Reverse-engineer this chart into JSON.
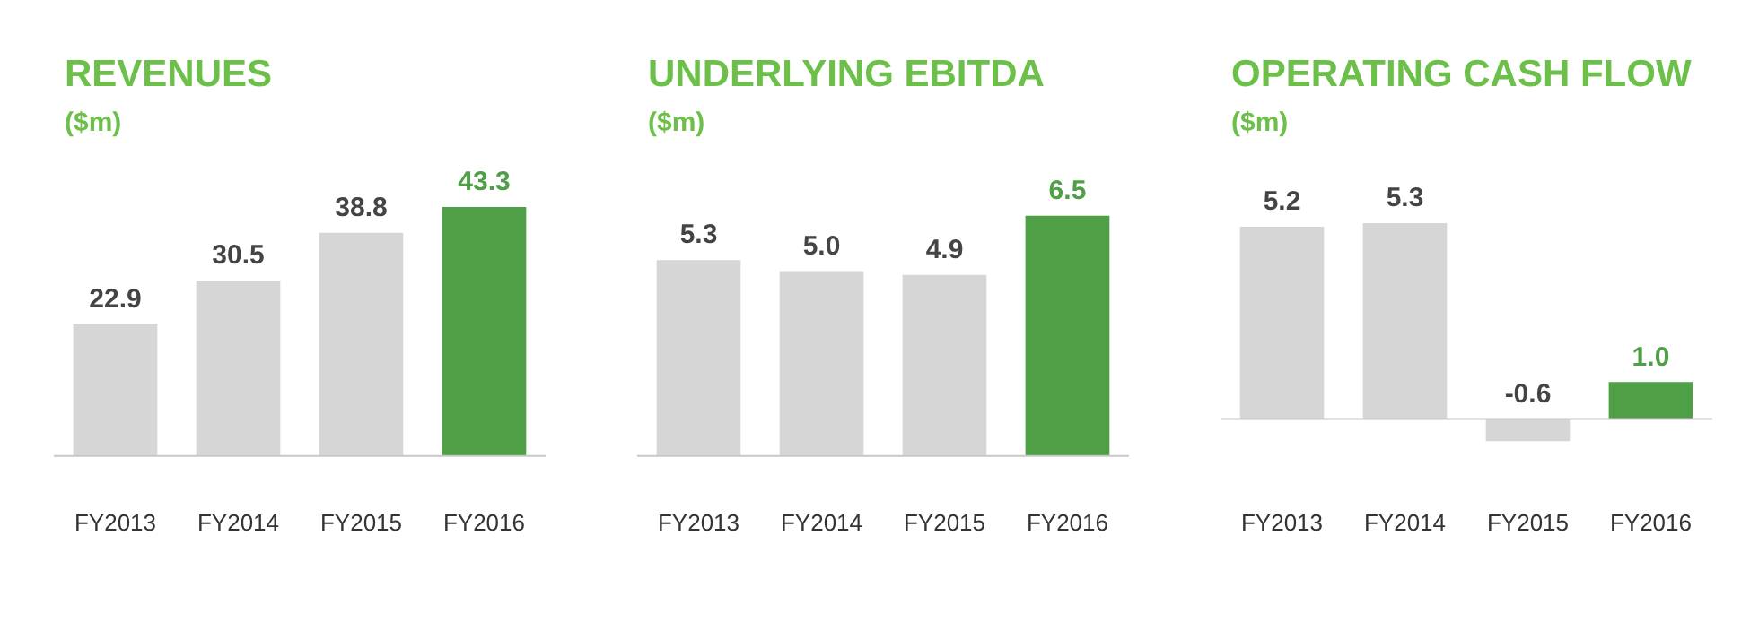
{
  "chart_data": [
    {
      "type": "bar",
      "title": "REVENUES",
      "subtitle": "($m)",
      "categories": [
        "FY2013",
        "FY2014",
        "FY2015",
        "FY2016"
      ],
      "values": [
        22.9,
        30.5,
        38.8,
        43.3
      ],
      "value_labels": [
        "22.9",
        "30.5",
        "38.8",
        "43.3"
      ],
      "colors": [
        "#d6d6d6",
        "#d6d6d6",
        "#d6d6d6",
        "#4e9f46"
      ],
      "grid": false,
      "legend": false
    },
    {
      "type": "bar",
      "title": "UNDERLYING EBITDA",
      "subtitle": "($m)",
      "categories": [
        "FY2013",
        "FY2014",
        "FY2015",
        "FY2016"
      ],
      "values": [
        5.3,
        5.0,
        4.9,
        6.5
      ],
      "value_labels": [
        "5.3",
        "5.0",
        "4.9",
        "6.5"
      ],
      "colors": [
        "#d6d6d6",
        "#d6d6d6",
        "#d6d6d6",
        "#4e9f46"
      ],
      "grid": false,
      "legend": false
    },
    {
      "type": "bar",
      "title": "OPERATING CASH FLOW",
      "subtitle": "($m)",
      "categories": [
        "FY2013",
        "FY2014",
        "FY2015",
        "FY2016"
      ],
      "values": [
        5.2,
        5.3,
        -0.6,
        1.0
      ],
      "value_labels": [
        "5.2",
        "5.3",
        "-0.6",
        "1.0"
      ],
      "colors": [
        "#d6d6d6",
        "#d6d6d6",
        "#d6d6d6",
        "#4e9f46"
      ],
      "grid": false,
      "legend": false
    }
  ]
}
